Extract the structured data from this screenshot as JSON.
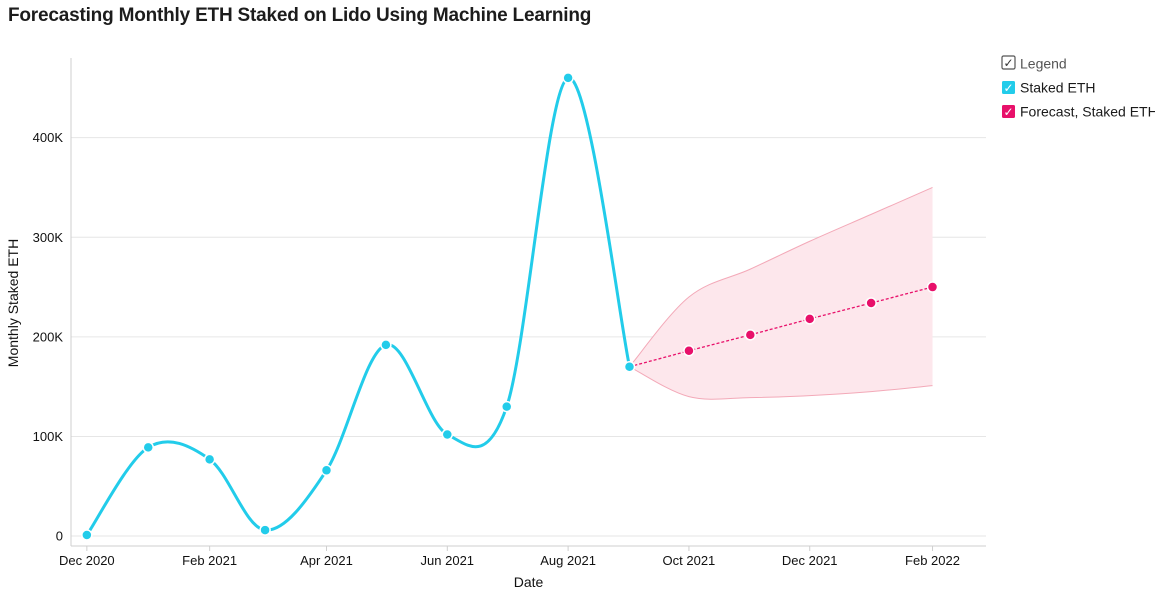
{
  "colors": {
    "actual": "#22ccea",
    "forecast": "#e8106a",
    "band": "#fde7ec",
    "band_edge": "#f3a9b8",
    "grid": "#e6e6e6"
  },
  "chart_data": {
    "type": "line",
    "title": "Forecasting Monthly ETH Staked on Lido Using Machine Learning",
    "xlabel": "Date",
    "ylabel": "Monthly Staked ETH",
    "ylim": [
      -10000,
      480000
    ],
    "yticks": [
      {
        "value": 0,
        "label": "0"
      },
      {
        "value": 100000,
        "label": "100K"
      },
      {
        "value": 200000,
        "label": "200K"
      },
      {
        "value": 300000,
        "label": "300K"
      },
      {
        "value": 400000,
        "label": "400K"
      }
    ],
    "xlim": [
      "2020-11-23",
      "2022-02-28"
    ],
    "xticks": [
      {
        "date": "2020-12-01",
        "label": "Dec 2020"
      },
      {
        "date": "2021-02-01",
        "label": "Feb 2021"
      },
      {
        "date": "2021-04-01",
        "label": "Apr 2021"
      },
      {
        "date": "2021-06-01",
        "label": "Jun 2021"
      },
      {
        "date": "2021-08-01",
        "label": "Aug 2021"
      },
      {
        "date": "2021-10-01",
        "label": "Oct 2021"
      },
      {
        "date": "2021-12-01",
        "label": "Dec 2021"
      },
      {
        "date": "2022-02-01",
        "label": "Feb 2022"
      }
    ],
    "series": [
      {
        "name": "Staked ETH",
        "points": [
          {
            "date": "2020-12-01",
            "value": 1000
          },
          {
            "date": "2021-01-01",
            "value": 89000
          },
          {
            "date": "2021-02-01",
            "value": 77000
          },
          {
            "date": "2021-03-01",
            "value": 6000
          },
          {
            "date": "2021-04-01",
            "value": 66000
          },
          {
            "date": "2021-05-01",
            "value": 192000
          },
          {
            "date": "2021-06-01",
            "value": 102000
          },
          {
            "date": "2021-07-01",
            "value": 130000
          },
          {
            "date": "2021-08-01",
            "value": 460000
          },
          {
            "date": "2021-09-01",
            "value": 170000
          }
        ]
      },
      {
        "name": "Forecast, Staked ETH",
        "points": [
          {
            "date": "2021-09-01",
            "value": 170000
          },
          {
            "date": "2021-10-01",
            "value": 186000
          },
          {
            "date": "2021-11-01",
            "value": 202000
          },
          {
            "date": "2021-12-01",
            "value": 218000
          },
          {
            "date": "2022-01-01",
            "value": 234000
          },
          {
            "date": "2022-02-01",
            "value": 250000
          }
        ],
        "interval": [
          {
            "date": "2021-09-01",
            "lower": 170000,
            "upper": 170000
          },
          {
            "date": "2021-10-01",
            "lower": 140000,
            "upper": 240000
          },
          {
            "date": "2021-11-01",
            "lower": 139000,
            "upper": 268000
          },
          {
            "date": "2021-12-01",
            "lower": 141000,
            "upper": 296000
          },
          {
            "date": "2022-01-01",
            "lower": 145000,
            "upper": 323000
          },
          {
            "date": "2022-02-01",
            "lower": 151000,
            "upper": 350000
          }
        ]
      }
    ],
    "legend": {
      "title": "Legend",
      "position": "top-right",
      "items": [
        {
          "label": "Staked ETH",
          "checked": true
        },
        {
          "label": "Forecast, Staked ETH",
          "checked": true
        }
      ]
    }
  }
}
